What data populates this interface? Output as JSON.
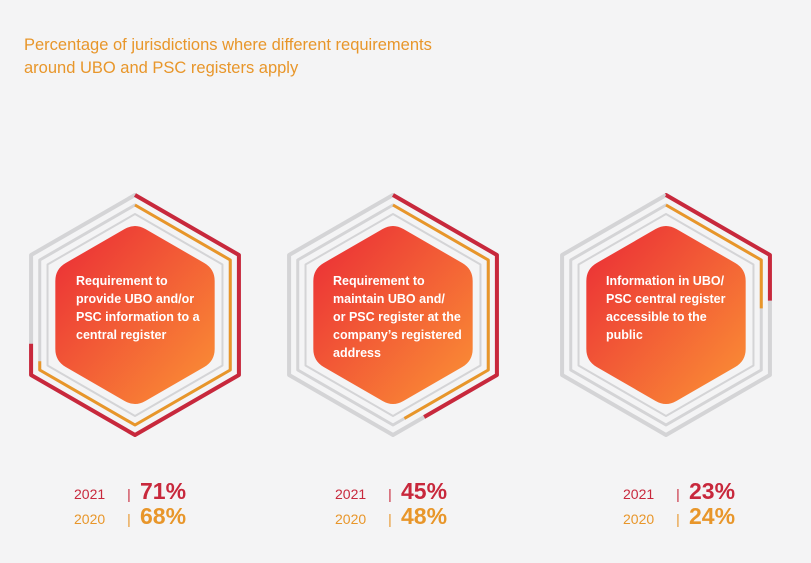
{
  "title": "Percentage of jurisdictions where different requirements around UBO and PSC registers apply",
  "colors": {
    "y2021": "#c8283c",
    "y2020": "#e8962a",
    "track": "#d4d4d6",
    "text": "#ffffff"
  },
  "chart_data": {
    "type": "radial-progress",
    "series": [
      "2021",
      "2020"
    ],
    "items": [
      {
        "label": "Requirement to provide UBO and/or PSC information to a central register",
        "label_lines": [
          "Requirement to",
          "provide UBO and/or",
          "PSC information to a",
          "central register"
        ],
        "year_2021": "2021",
        "year_2020": "2020",
        "value_2021": 71,
        "value_2020": 68,
        "value_2021_text": "71%",
        "value_2020_text": "68%"
      },
      {
        "label": "Requirement to maintain UBO and/or PSC register at the company's registered address",
        "label_lines": [
          "Requirement to",
          "maintain UBO and/",
          "or PSC register at the",
          "company’s registered",
          "address"
        ],
        "year_2021": "2021",
        "year_2020": "2020",
        "value_2021": 45,
        "value_2020": 48,
        "value_2021_text": "45%",
        "value_2020_text": "48%"
      },
      {
        "label": "Information in UBO/PSC central register accessible to the public",
        "label_lines": [
          "Information in UBO/",
          "PSC central register",
          "accessible to the",
          "public"
        ],
        "year_2021": "2021",
        "year_2020": "2020",
        "value_2021": 23,
        "value_2020": 24,
        "value_2021_text": "23%",
        "value_2020_text": "24%"
      }
    ]
  }
}
